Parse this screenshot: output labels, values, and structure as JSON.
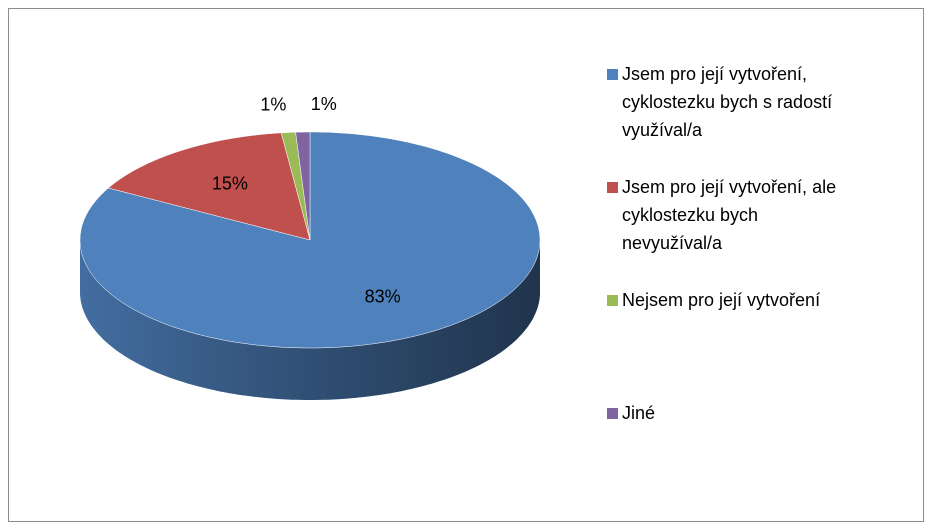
{
  "chart_data": {
    "type": "pie3d",
    "categories": [
      "Jsem pro její vytvoření, cyklostezku bych s radostí využíval/a",
      "Jsem pro její vytvoření, ale cyklostezku bych nevyužíval/a",
      "Nejsem pro její vytvoření",
      "Jiné"
    ],
    "values": [
      83,
      15,
      1,
      1
    ],
    "value_labels": [
      "83%",
      "15%",
      "1%",
      "1%"
    ],
    "colors": [
      "#4f81bd",
      "#c0504d",
      "#9bbb59",
      "#8064a2"
    ],
    "legend": "right"
  }
}
